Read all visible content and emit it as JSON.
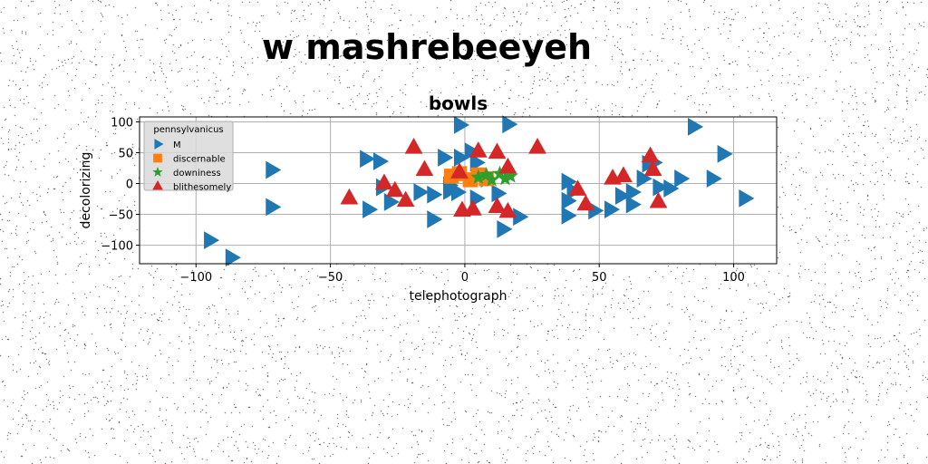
{
  "figure": {
    "suptitle": "w mashrebeeyeh"
  },
  "chart_data": {
    "type": "scatter",
    "title": "bowls",
    "xlabel": "telephotograph",
    "ylabel": "decolorizing",
    "xlim": [
      -121,
      116
    ],
    "ylim": [
      -130,
      108
    ],
    "xticks": [
      -100,
      -50,
      0,
      50,
      100
    ],
    "yticks": [
      -100,
      -50,
      0,
      50,
      100
    ],
    "grid": true,
    "legend": {
      "title": "pennsylvanicus",
      "placement": "top-left"
    },
    "series": [
      {
        "name": "M",
        "marker": "triangle-right",
        "color": "#1f77b4",
        "points": [
          [
            -2,
            95
          ],
          [
            16,
            96
          ],
          [
            85,
            92
          ],
          [
            -72,
            22
          ],
          [
            -37,
            40
          ],
          [
            -32,
            36
          ],
          [
            -31,
            -6
          ],
          [
            -28,
            -30
          ],
          [
            -36,
            -42
          ],
          [
            -17,
            -14
          ],
          [
            -12,
            -18
          ],
          [
            -12,
            -58
          ],
          [
            -6,
            -12
          ],
          [
            -6,
            -3
          ],
          [
            -8,
            42
          ],
          [
            -2,
            42
          ],
          [
            2,
            52
          ],
          [
            4,
            34
          ],
          [
            -3,
            -14
          ],
          [
            4,
            -24
          ],
          [
            8,
            8
          ],
          [
            12,
            -16
          ],
          [
            14,
            -74
          ],
          [
            20,
            -54
          ],
          [
            38,
            3
          ],
          [
            38,
            -28
          ],
          [
            38,
            -52
          ],
          [
            40,
            -12
          ],
          [
            48,
            -44
          ],
          [
            54,
            -42
          ],
          [
            58,
            -20
          ],
          [
            62,
            -14
          ],
          [
            62,
            -34
          ],
          [
            66,
            8
          ],
          [
            68,
            32
          ],
          [
            70,
            34
          ],
          [
            72,
            -6
          ],
          [
            76,
            -8
          ],
          [
            80,
            8
          ],
          [
            92,
            8
          ],
          [
            96,
            48
          ],
          [
            104,
            -24
          ],
          [
            -72,
            -38
          ],
          [
            -95,
            -92
          ],
          [
            -87,
            -120
          ]
        ]
      },
      {
        "name": "discernable",
        "marker": "square",
        "color": "#ff7f0e",
        "points": [
          [
            -5,
            12
          ],
          [
            -2,
            16
          ],
          [
            2,
            6
          ],
          [
            5,
            14
          ],
          [
            8,
            8
          ]
        ]
      },
      {
        "name": "downiness",
        "marker": "star",
        "color": "#2ca02c",
        "points": [
          [
            5,
            10
          ],
          [
            8,
            14
          ],
          [
            10,
            6
          ],
          [
            13,
            16
          ],
          [
            15,
            8
          ],
          [
            17,
            12
          ]
        ]
      },
      {
        "name": "blithesomely",
        "marker": "triangle-up",
        "color": "#d62728",
        "points": [
          [
            -19,
            58
          ],
          [
            -15,
            22
          ],
          [
            -30,
            0
          ],
          [
            -26,
            -12
          ],
          [
            -22,
            -28
          ],
          [
            -43,
            -24
          ],
          [
            -2,
            18
          ],
          [
            5,
            52
          ],
          [
            12,
            50
          ],
          [
            16,
            26
          ],
          [
            27,
            58
          ],
          [
            -1,
            -44
          ],
          [
            3,
            -42
          ],
          [
            12,
            -38
          ],
          [
            16,
            -46
          ],
          [
            42,
            -10
          ],
          [
            45,
            -34
          ],
          [
            55,
            8
          ],
          [
            59,
            12
          ],
          [
            69,
            44
          ],
          [
            70,
            22
          ],
          [
            72,
            -30
          ]
        ]
      }
    ]
  }
}
